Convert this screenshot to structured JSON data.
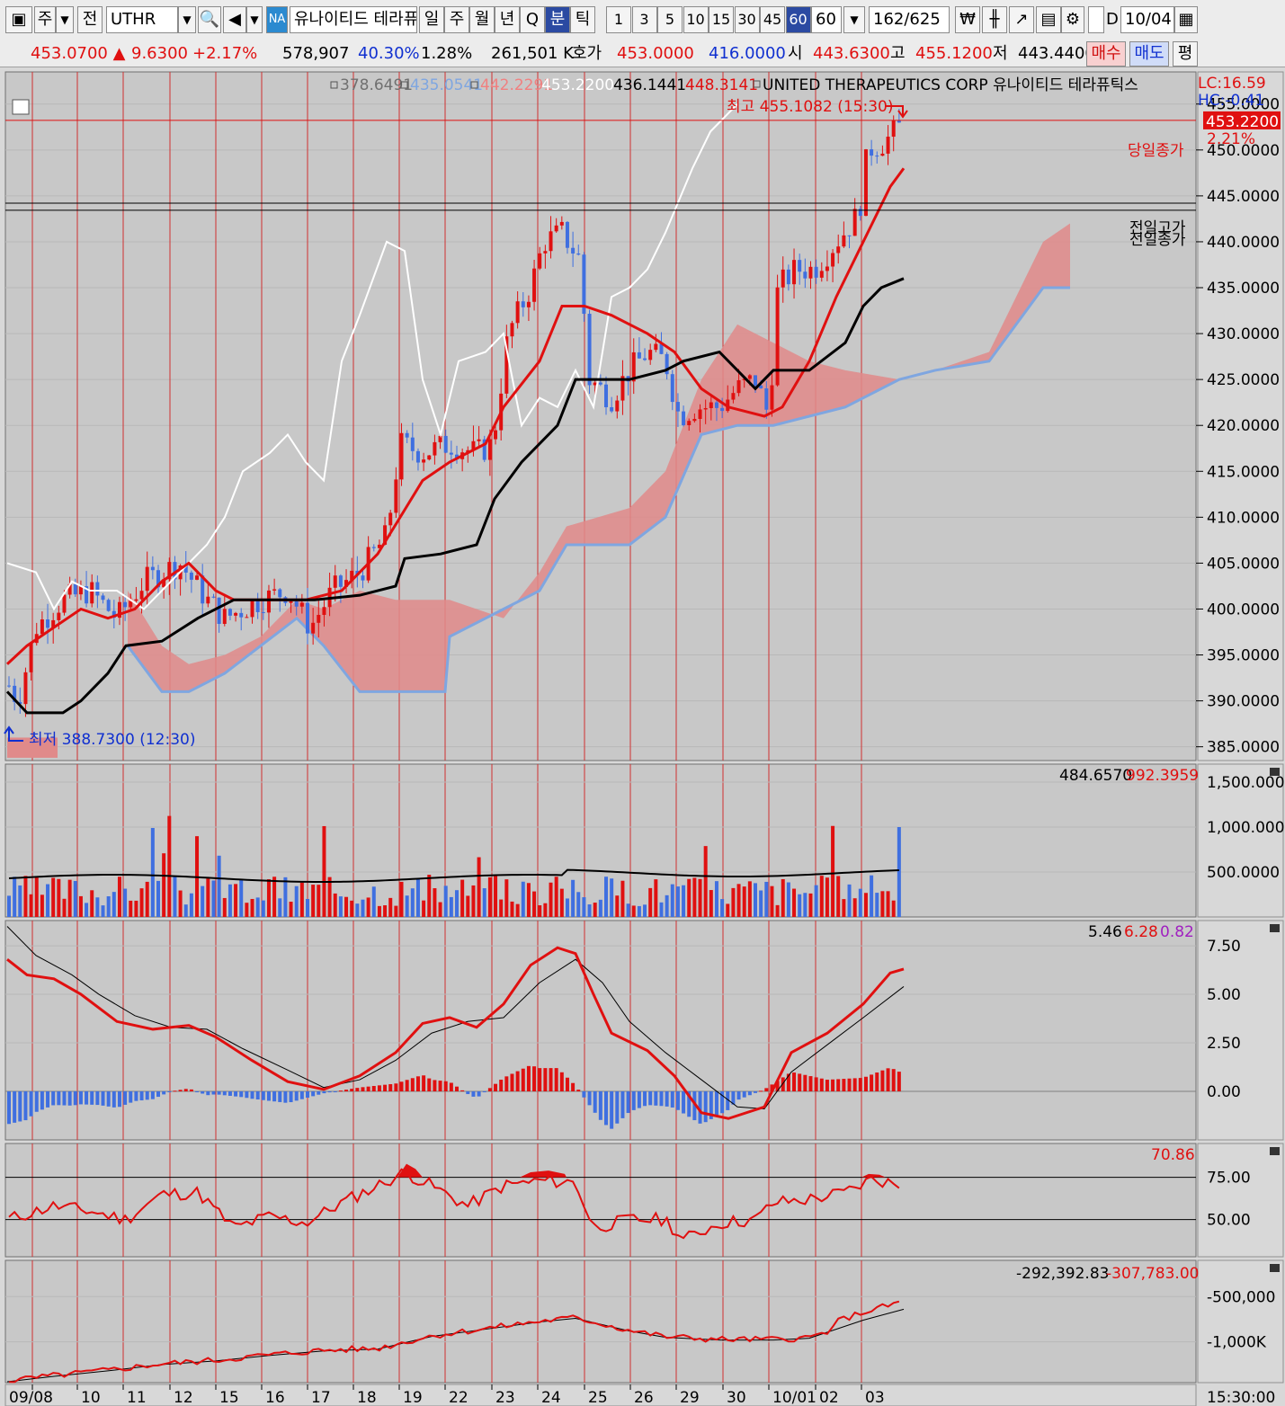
{
  "toolbar": {
    "window_btn": "주",
    "prev_btn": "전",
    "symbol": "UTHR",
    "market_badge": "NA",
    "stock_name": "유나이티드 테라퓨",
    "period_tabs": [
      "일",
      "주",
      "월",
      "년",
      "Q",
      "분",
      "틱"
    ],
    "selected_period": "분",
    "interval_buttons": [
      "1",
      "3",
      "5",
      "10",
      "15",
      "30",
      "45",
      "60"
    ],
    "selected_interval": "60",
    "interval_value": "60",
    "count": "162/625",
    "checkbox_label": "D",
    "date": "10/04"
  },
  "quote": {
    "price": "453.0700",
    "change": "9.6300",
    "change_pct": "+2.17%",
    "volume": "578,907",
    "vol_ratio": "40.30%",
    "turnover_pct": "1.28%",
    "amount": "261,501 K",
    "bid_label": "호가",
    "bid": "453.0000",
    "ask": "416.0000",
    "open_label": "시",
    "open": "443.6300",
    "high_label": "고",
    "high": "455.1200",
    "low_label": "저",
    "low": "443.4400",
    "buy_btn": "매수",
    "sell_btn": "매도",
    "eval_btn": "평"
  },
  "price_panel": {
    "legend": [
      "378.6491",
      "435.0541",
      "442.2291",
      "453.2200",
      "436.1441",
      "448.3141"
    ],
    "legend_colors": [
      "#707070",
      "#7fa6e0",
      "#f08080",
      "#ffffff",
      "#000000",
      "#e01010"
    ],
    "title": "UNITED THERAPEUTICS CORP  유나이티드 테라퓨틱스",
    "lc": "LC:16.59",
    "hc": "HC:-0.41",
    "high_note": "최고 455.1082 (15:30)",
    "low_note": "최저 388.7300 (12:30)",
    "today_close_label": "당일종가",
    "prev_high_label": "전일고가",
    "prev_close_label": "전일종가",
    "last_price": "453.2200",
    "last_pct": "2.21%",
    "y_labels": [
      "455.0000",
      "450.0000",
      "445.0000",
      "440.0000",
      "435.0000",
      "430.0000",
      "425.0000",
      "420.0000",
      "415.0000",
      "410.0000",
      "405.0000",
      "400.0000",
      "395.0000",
      "390.0000",
      "385.0000"
    ]
  },
  "volume_panel": {
    "values_text": "484.6570",
    "values_text2": "992.3959",
    "y_labels": [
      "1,500.0000",
      "1,000.0000",
      "500.0000"
    ]
  },
  "macd_panel": {
    "v1": "5.46",
    "v2": "6.28",
    "v3": "0.82",
    "y_labels": [
      "7.50",
      "5.00",
      "2.50",
      "0.00"
    ]
  },
  "rsi_panel": {
    "value": "70.86",
    "y_labels": [
      "75.00",
      "50.00"
    ]
  },
  "obv_panel": {
    "v1": "-292,392.83",
    "v2": "-307,783.00",
    "y_labels": [
      "-500,000",
      "-1,000K"
    ]
  },
  "x_axis": {
    "labels": [
      "09/08",
      "10",
      "11",
      "12",
      "15",
      "16",
      "17",
      "18",
      "19",
      "22",
      "23",
      "24",
      "25",
      "26",
      "29",
      "30",
      "10/01",
      "02",
      "03"
    ],
    "time": "15:30:00"
  },
  "colors": {
    "up": "#e01010",
    "down": "#3f6fe0",
    "cloud": "#e08a8a",
    "bg": "#c8c8c8"
  }
}
